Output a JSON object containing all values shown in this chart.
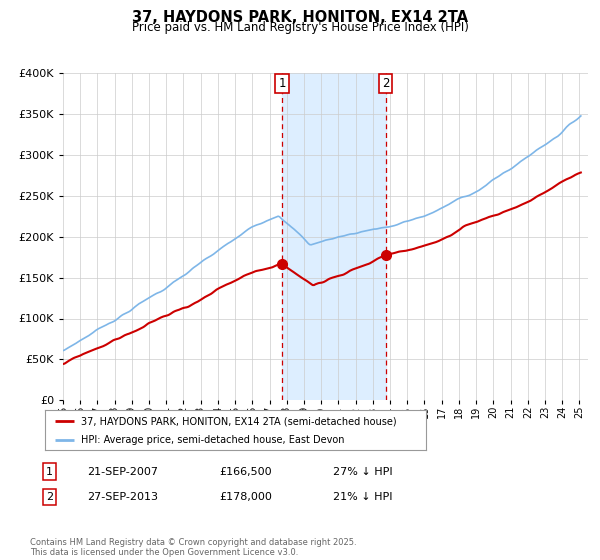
{
  "title": "37, HAYDONS PARK, HONITON, EX14 2TA",
  "subtitle": "Price paid vs. HM Land Registry's House Price Index (HPI)",
  "legend_property": "37, HAYDONS PARK, HONITON, EX14 2TA (semi-detached house)",
  "legend_hpi": "HPI: Average price, semi-detached house, East Devon",
  "sale1_date": "21-SEP-2007",
  "sale1_price": 166500,
  "sale2_date": "27-SEP-2013",
  "sale2_price": 178000,
  "sale1_pct": "27% ↓ HPI",
  "sale2_pct": "21% ↓ HPI",
  "sale1_year": 2007.72,
  "sale2_year": 2013.74,
  "hpi_color": "#7EB6E8",
  "price_color": "#CC0000",
  "shade_color": "#DDEEFF",
  "grid_color": "#CCCCCC",
  "background_color": "#FFFFFF",
  "footnote": "Contains HM Land Registry data © Crown copyright and database right 2025.\nThis data is licensed under the Open Government Licence v3.0.",
  "ylim_max": 400000
}
